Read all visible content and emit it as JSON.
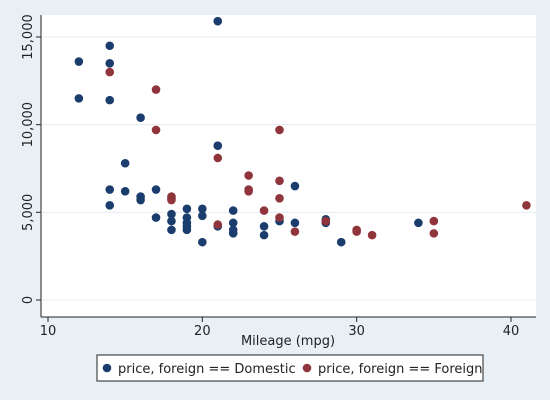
{
  "chart_data": {
    "type": "scatter",
    "title": "",
    "xlabel": "Mileage (mpg)",
    "ylabel": "",
    "xlim": [
      10,
      42
    ],
    "ylim": [
      0,
      16000
    ],
    "x_ticks": [
      10,
      20,
      30,
      40
    ],
    "x_tick_labels": [
      "10",
      "20",
      "30",
      "40"
    ],
    "y_ticks": [
      0,
      5000,
      10000,
      15000
    ],
    "y_tick_labels": [
      "0",
      "5,000",
      "10,000",
      "15,000"
    ],
    "grid": "horizontal",
    "legend_position": "bottom",
    "colors": {
      "Domestic": "#1a3d6e",
      "Foreign": "#90353b"
    },
    "series": [
      {
        "name": "price, foreign == Domestic",
        "points": [
          {
            "x": 12,
            "y": 13600
          },
          {
            "x": 12,
            "y": 11500
          },
          {
            "x": 14,
            "y": 14500
          },
          {
            "x": 14,
            "y": 13500
          },
          {
            "x": 14,
            "y": 11400
          },
          {
            "x": 14,
            "y": 6300
          },
          {
            "x": 14,
            "y": 5400
          },
          {
            "x": 15,
            "y": 7800
          },
          {
            "x": 15,
            "y": 6200
          },
          {
            "x": 16,
            "y": 10400
          },
          {
            "x": 16,
            "y": 5900
          },
          {
            "x": 16,
            "y": 5700
          },
          {
            "x": 17,
            "y": 6300
          },
          {
            "x": 17,
            "y": 4700
          },
          {
            "x": 18,
            "y": 5800
          },
          {
            "x": 18,
            "y": 4900
          },
          {
            "x": 18,
            "y": 4500
          },
          {
            "x": 18,
            "y": 4000
          },
          {
            "x": 19,
            "y": 5200
          },
          {
            "x": 19,
            "y": 4700
          },
          {
            "x": 19,
            "y": 4400
          },
          {
            "x": 19,
            "y": 4200
          },
          {
            "x": 19,
            "y": 4000
          },
          {
            "x": 20,
            "y": 5200
          },
          {
            "x": 20,
            "y": 4800
          },
          {
            "x": 20,
            "y": 3300
          },
          {
            "x": 21,
            "y": 15900
          },
          {
            "x": 21,
            "y": 8800
          },
          {
            "x": 21,
            "y": 4200
          },
          {
            "x": 22,
            "y": 5100
          },
          {
            "x": 22,
            "y": 4400
          },
          {
            "x": 22,
            "y": 4000
          },
          {
            "x": 22,
            "y": 3800
          },
          {
            "x": 24,
            "y": 4200
          },
          {
            "x": 24,
            "y": 3700
          },
          {
            "x": 25,
            "y": 4500
          },
          {
            "x": 26,
            "y": 6500
          },
          {
            "x": 26,
            "y": 4400
          },
          {
            "x": 28,
            "y": 4600
          },
          {
            "x": 28,
            "y": 4400
          },
          {
            "x": 29,
            "y": 3300
          },
          {
            "x": 34,
            "y": 4400
          }
        ]
      },
      {
        "name": "price, foreign == Foreign",
        "points": [
          {
            "x": 14,
            "y": 13000
          },
          {
            "x": 17,
            "y": 12000
          },
          {
            "x": 17,
            "y": 9700
          },
          {
            "x": 18,
            "y": 5900
          },
          {
            "x": 18,
            "y": 5700
          },
          {
            "x": 21,
            "y": 8100
          },
          {
            "x": 21,
            "y": 4300
          },
          {
            "x": 23,
            "y": 7100
          },
          {
            "x": 23,
            "y": 6300
          },
          {
            "x": 23,
            "y": 6200
          },
          {
            "x": 24,
            "y": 5100
          },
          {
            "x": 25,
            "y": 9700
          },
          {
            "x": 25,
            "y": 6800
          },
          {
            "x": 25,
            "y": 5800
          },
          {
            "x": 25,
            "y": 4700
          },
          {
            "x": 26,
            "y": 3900
          },
          {
            "x": 28,
            "y": 4500
          },
          {
            "x": 30,
            "y": 4000
          },
          {
            "x": 30,
            "y": 3900
          },
          {
            "x": 31,
            "y": 3700
          },
          {
            "x": 35,
            "y": 4500
          },
          {
            "x": 35,
            "y": 3800
          },
          {
            "x": 41,
            "y": 5400
          }
        ]
      }
    ]
  }
}
